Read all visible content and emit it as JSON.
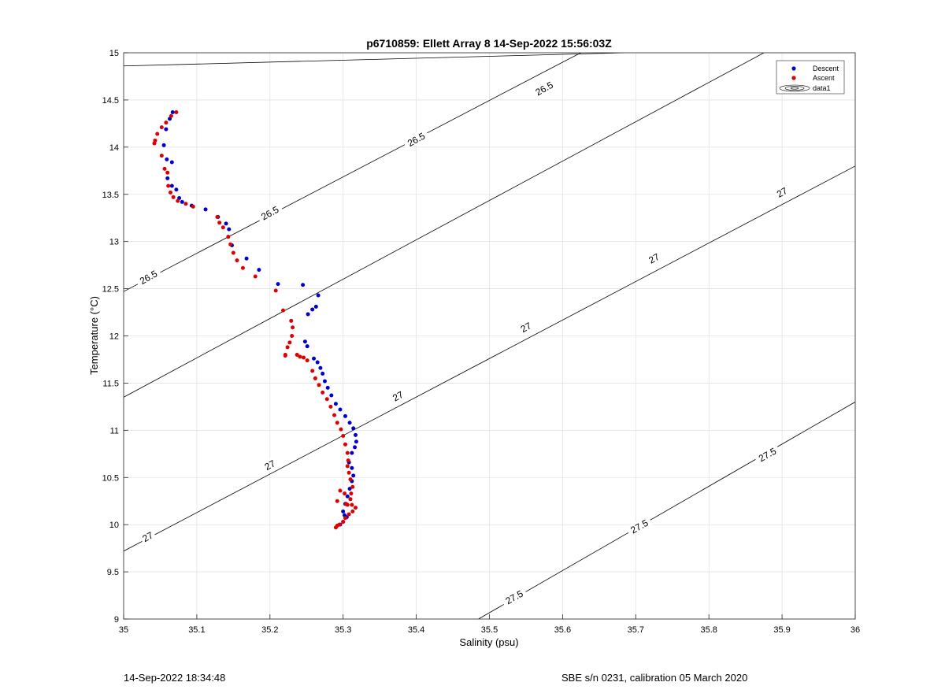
{
  "chart_data": {
    "type": "scatter",
    "title": "p6710859: Ellett Array 8 14-Sep-2022 15:56:03Z",
    "xlabel": "Salinity (psu)",
    "ylabel": "Temperature (°C)",
    "xlim": [
      35,
      36
    ],
    "ylim": [
      9,
      15
    ],
    "xticks": [
      "35",
      "35.1",
      "35.2",
      "35.3",
      "35.4",
      "35.5",
      "35.6",
      "35.7",
      "35.8",
      "35.9",
      "36"
    ],
    "yticks": [
      "9",
      "9.5",
      "10",
      "10.5",
      "11",
      "11.5",
      "12",
      "12.5",
      "13",
      "13.5",
      "14",
      "14.5",
      "15"
    ],
    "grid": true,
    "legend": {
      "placement": "top-right",
      "entries": [
        "Descent",
        "Ascent",
        "data1"
      ]
    },
    "colors": {
      "descent": "#0000cc",
      "ascent": "#dd0000",
      "contour": "#000000",
      "grid": "#e3e3e3"
    },
    "series": [
      {
        "name": "Descent",
        "marker": "dot",
        "x": [
          35.067,
          35.063,
          35.058,
          35.055,
          35.059,
          35.066,
          35.06,
          35.066,
          35.072,
          35.076,
          35.08,
          35.093,
          35.112,
          35.129,
          35.14,
          35.144,
          35.148,
          35.168,
          35.185,
          35.211,
          35.245,
          35.266,
          35.263,
          35.258,
          35.252,
          35.248,
          35.251,
          35.26,
          35.265,
          35.269,
          35.272,
          35.275,
          35.279,
          35.284,
          35.29,
          35.296,
          35.303,
          35.309,
          35.314,
          35.317,
          35.318,
          35.316,
          35.312,
          35.308,
          35.312,
          35.314,
          35.312,
          35.309,
          35.306,
          35.303,
          35.3,
          35.302,
          35.305,
          35.3,
          35.296
        ],
        "y": [
          14.37,
          14.3,
          14.19,
          14.02,
          13.87,
          13.84,
          13.67,
          13.59,
          13.55,
          13.46,
          13.42,
          13.38,
          13.34,
          13.26,
          13.19,
          13.13,
          12.96,
          12.82,
          12.7,
          12.55,
          12.54,
          12.43,
          12.31,
          12.28,
          12.23,
          11.94,
          11.89,
          11.76,
          11.72,
          11.66,
          11.6,
          11.52,
          11.45,
          11.37,
          11.28,
          11.22,
          11.15,
          11.08,
          11.02,
          10.95,
          10.88,
          10.82,
          10.76,
          10.66,
          10.6,
          10.52,
          10.46,
          10.38,
          10.3,
          10.22,
          10.14,
          10.1,
          10.08,
          10.03,
          10.0
        ]
      },
      {
        "name": "Ascent",
        "marker": "dot",
        "x": [
          35.072,
          35.065,
          35.058,
          35.052,
          35.046,
          35.043,
          35.042,
          35.052,
          35.056,
          35.06,
          35.061,
          35.064,
          35.068,
          35.074,
          35.085,
          35.095,
          35.128,
          35.131,
          35.136,
          35.143,
          35.146,
          35.15,
          35.155,
          35.163,
          35.18,
          35.208,
          35.218,
          35.229,
          35.231,
          35.23,
          35.227,
          35.224,
          35.221,
          35.221,
          35.237,
          35.241,
          35.246,
          35.251,
          35.258,
          35.262,
          35.267,
          35.272,
          35.278,
          35.283,
          35.288,
          35.292,
          35.297,
          35.3,
          35.303,
          35.306,
          35.307,
          35.306,
          35.308,
          35.31,
          35.313,
          35.311,
          35.31,
          35.306,
          35.302,
          35.296,
          35.292,
          35.304,
          35.312,
          35.317,
          35.313,
          35.308,
          35.303,
          35.3,
          35.295,
          35.292,
          35.29
        ],
        "y": [
          14.37,
          14.33,
          14.26,
          14.21,
          14.14,
          14.07,
          14.04,
          13.91,
          13.77,
          13.73,
          13.59,
          13.52,
          13.47,
          13.43,
          13.4,
          13.37,
          13.26,
          13.2,
          13.15,
          13.05,
          12.97,
          12.88,
          12.8,
          12.72,
          12.63,
          12.48,
          12.27,
          12.16,
          12.09,
          12.0,
          11.93,
          11.88,
          11.8,
          11.79,
          11.8,
          11.78,
          11.77,
          11.74,
          11.63,
          11.55,
          11.48,
          11.4,
          11.33,
          11.25,
          11.16,
          11.08,
          11.01,
          10.94,
          10.85,
          10.76,
          10.68,
          10.62,
          10.55,
          10.48,
          10.4,
          10.33,
          10.27,
          10.21,
          10.33,
          10.36,
          10.25,
          10.22,
          10.21,
          10.18,
          10.14,
          10.11,
          10.07,
          10.03,
          10.0,
          9.99,
          9.97
        ]
      }
    ],
    "contours": [
      {
        "label": "26.5",
        "s": [
          35.0,
          35.684
        ],
        "t": [
          14.86,
          15.0
        ]
      },
      {
        "label": "26.5",
        "s": [
          35.0,
          35.6,
          36.0
        ],
        "t": [
          12.47,
          14.9,
          16.5
        ]
      },
      {
        "label": "27",
        "s": [
          35.0,
          36.0
        ],
        "t": [
          11.35,
          15.52
        ]
      },
      {
        "label": "27",
        "s": [
          35.0,
          36.0
        ],
        "t": [
          9.72,
          13.8
        ]
      },
      {
        "label": "27.5",
        "s": [
          35.485,
          36.0
        ],
        "t": [
          9.0,
          11.3
        ]
      }
    ],
    "contour_labels": [
      {
        "text": "26.5",
        "s": 35.034,
        "t": 12.62
      },
      {
        "text": "26.5",
        "s": 35.2,
        "t": 13.3
      },
      {
        "text": "26.5",
        "s": 35.4,
        "t": 14.08
      },
      {
        "text": "26.5",
        "s": 35.575,
        "t": 14.62
      },
      {
        "text": "27",
        "s": 35.033,
        "t": 9.87
      },
      {
        "text": "27",
        "s": 35.2,
        "t": 10.63
      },
      {
        "text": "27",
        "s": 35.375,
        "t": 11.36
      },
      {
        "text": "27",
        "s": 35.55,
        "t": 12.09
      },
      {
        "text": "27",
        "s": 35.725,
        "t": 12.82
      },
      {
        "text": "27",
        "s": 35.9,
        "t": 13.52
      },
      {
        "text": "27.5",
        "s": 35.534,
        "t": 9.23
      },
      {
        "text": "27.5",
        "s": 35.705,
        "t": 9.98
      },
      {
        "text": "27.5",
        "s": 35.88,
        "t": 10.74
      }
    ]
  },
  "footer": {
    "left": "14-Sep-2022 18:34:48",
    "right": "SBE s/n 0231, calibration 05 March 2020"
  }
}
